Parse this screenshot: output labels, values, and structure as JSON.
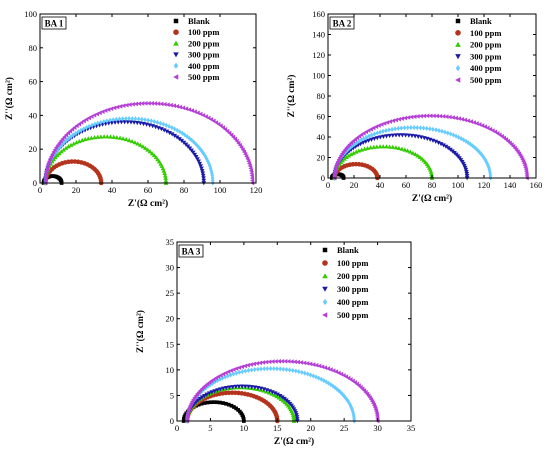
{
  "chart_data": [
    {
      "type": "scatter",
      "title": "BA 1",
      "xlabel": "Z'(Ω cm²)",
      "ylabel": "Z''(Ω cm²)",
      "xlim": [
        0,
        120
      ],
      "ylim": [
        0,
        100
      ],
      "xticks": [
        0,
        20,
        40,
        60,
        80,
        100,
        120
      ],
      "yticks": [
        0,
        20,
        40,
        60,
        80,
        100
      ],
      "legend_position": "top-right",
      "series": [
        {
          "name": "Blank",
          "color": "#000000",
          "marker": "square",
          "offset": 2,
          "diameter": 10
        },
        {
          "name": "100 ppm",
          "color": "#b5331c",
          "marker": "circle",
          "offset": 3,
          "diameter": 31
        },
        {
          "name": "200 ppm",
          "color": "#33cc00",
          "marker": "triangle-up",
          "offset": 3,
          "diameter": 67
        },
        {
          "name": "300 ppm",
          "color": "#1a1aa8",
          "marker": "triangle-down",
          "offset": 3,
          "diameter": 88
        },
        {
          "name": "400 ppm",
          "color": "#66ccff",
          "marker": "diamond",
          "offset": 3,
          "diameter": 93
        },
        {
          "name": "500 ppm",
          "color": "#b43ed6",
          "marker": "triangle-left",
          "offset": 3,
          "diameter": 115
        }
      ]
    },
    {
      "type": "scatter",
      "title": "BA 2",
      "xlabel": "Z'(Ω cm²)",
      "ylabel": "Z''(Ω cm²)",
      "xlim": [
        0,
        160
      ],
      "ylim": [
        0,
        160
      ],
      "xticks": [
        0,
        20,
        40,
        60,
        80,
        100,
        120,
        140,
        160
      ],
      "yticks": [
        0,
        20,
        40,
        60,
        80,
        100,
        120,
        140,
        160
      ],
      "legend_position": "top-right",
      "series": [
        {
          "name": "Blank",
          "color": "#000000",
          "marker": "square",
          "offset": 3,
          "diameter": 9
        },
        {
          "name": "100 ppm",
          "color": "#b5331c",
          "marker": "circle",
          "offset": 5,
          "diameter": 33
        },
        {
          "name": "200 ppm",
          "color": "#33cc00",
          "marker": "triangle-up",
          "offset": 5,
          "diameter": 75
        },
        {
          "name": "300 ppm",
          "color": "#1a1aa8",
          "marker": "triangle-down",
          "offset": 5,
          "diameter": 102
        },
        {
          "name": "400 ppm",
          "color": "#66ccff",
          "marker": "diamond",
          "offset": 5,
          "diameter": 120
        },
        {
          "name": "500 ppm",
          "color": "#b43ed6",
          "marker": "triangle-left",
          "offset": 5,
          "diameter": 148
        }
      ]
    },
    {
      "type": "scatter",
      "title": "BA 3",
      "xlabel": "Z'(Ω cm²)",
      "ylabel": "Z''(Ω cm²)",
      "xlim": [
        0,
        35
      ],
      "ylim": [
        0,
        35
      ],
      "xticks": [
        0,
        5,
        10,
        15,
        20,
        25,
        30,
        35
      ],
      "yticks": [
        0,
        5,
        10,
        15,
        20,
        25,
        30,
        35
      ],
      "legend_position": "top-right",
      "series": [
        {
          "name": "Blank",
          "color": "#000000",
          "marker": "square",
          "offset": 1,
          "diameter": 9
        },
        {
          "name": "100 ppm",
          "color": "#b5331c",
          "marker": "circle",
          "offset": 1.5,
          "diameter": 13.5
        },
        {
          "name": "200 ppm",
          "color": "#33cc00",
          "marker": "triangle-up",
          "offset": 1.5,
          "diameter": 16
        },
        {
          "name": "300 ppm",
          "color": "#1a1aa8",
          "marker": "triangle-down",
          "offset": 1.5,
          "diameter": 16.5
        },
        {
          "name": "400 ppm",
          "color": "#66ccff",
          "marker": "diamond",
          "offset": 1.5,
          "diameter": 25
        },
        {
          "name": "500 ppm",
          "color": "#b43ed6",
          "marker": "triangle-left",
          "offset": 1.5,
          "diameter": 28.5
        }
      ]
    }
  ]
}
